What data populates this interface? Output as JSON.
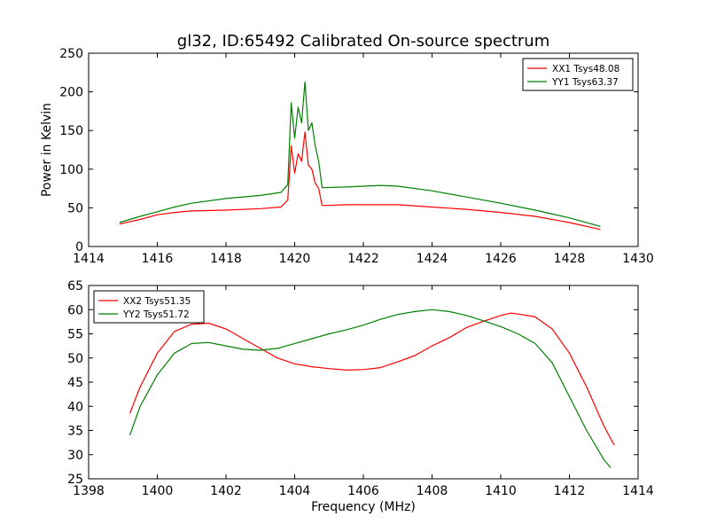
{
  "chart_data": [
    {
      "type": "line",
      "title": "gl32, ID:65492 Calibrated On-source spectrum",
      "xlabel": "",
      "ylabel": "Power in Kelvin",
      "xlim": [
        1414,
        1430
      ],
      "ylim": [
        0,
        250
      ],
      "xticks": [
        "1414",
        "1416",
        "1418",
        "1420",
        "1422",
        "1424",
        "1426",
        "1428",
        "1430"
      ],
      "yticks": [
        "0",
        "50",
        "100",
        "150",
        "200",
        "250"
      ],
      "grid": false,
      "legend_position": "top-right",
      "series": [
        {
          "name": "XX1 Tsys48.08",
          "color": "#ff0000",
          "x": [
            1414.9,
            1415.5,
            1416,
            1416.5,
            1417,
            1418,
            1419,
            1419.6,
            1419.8,
            1419.9,
            1420.0,
            1420.1,
            1420.2,
            1420.3,
            1420.4,
            1420.5,
            1420.6,
            1420.7,
            1420.8,
            1421.5,
            1422,
            1423,
            1424,
            1425,
            1426,
            1427,
            1428,
            1428.9
          ],
          "y": [
            29,
            35,
            41,
            44,
            46,
            47,
            49,
            51,
            60,
            130,
            95,
            120,
            110,
            148,
            105,
            100,
            82,
            75,
            53,
            54,
            54,
            54,
            51,
            48,
            44,
            39,
            31,
            22
          ]
        },
        {
          "name": "YY1 Tsys63.37",
          "color": "#008000",
          "x": [
            1414.9,
            1415.5,
            1416,
            1416.5,
            1417,
            1418,
            1419,
            1419.6,
            1419.8,
            1419.9,
            1420.0,
            1420.1,
            1420.2,
            1420.3,
            1420.4,
            1420.5,
            1420.6,
            1420.7,
            1420.8,
            1421.5,
            1422,
            1422.5,
            1423,
            1424,
            1425,
            1426,
            1427,
            1428,
            1428.9
          ],
          "y": [
            31,
            39,
            45,
            51,
            56,
            62,
            66,
            70,
            80,
            186,
            140,
            180,
            160,
            213,
            150,
            160,
            130,
            110,
            76,
            77,
            78,
            79,
            78,
            72,
            64,
            56,
            47,
            37,
            26
          ]
        }
      ]
    },
    {
      "type": "line",
      "title": "",
      "xlabel": "Frequency (MHz)",
      "ylabel": "",
      "xlim": [
        1398,
        1414
      ],
      "ylim": [
        25,
        65
      ],
      "xticks": [
        "1398",
        "1400",
        "1402",
        "1404",
        "1406",
        "1408",
        "1410",
        "1412",
        "1414"
      ],
      "yticks": [
        "25",
        "30",
        "35",
        "40",
        "45",
        "50",
        "55",
        "60",
        "65"
      ],
      "grid": false,
      "legend_position": "top-left",
      "series": [
        {
          "name": "XX2 Tsys51.35",
          "color": "#ff0000",
          "x": [
            1399.2,
            1399.5,
            1400,
            1400.5,
            1401,
            1401.5,
            1402,
            1402.5,
            1403,
            1403.5,
            1404,
            1404.5,
            1405,
            1405.5,
            1406,
            1406.5,
            1407,
            1407.5,
            1408,
            1408.5,
            1409,
            1409.5,
            1410,
            1410.3,
            1410.6,
            1411,
            1411.5,
            1412,
            1412.5,
            1413,
            1413.3
          ],
          "y": [
            38.5,
            44,
            51,
            55.5,
            57,
            57.2,
            56,
            54,
            52,
            50,
            48.8,
            48.2,
            47.8,
            47.5,
            47.6,
            48,
            49.2,
            50.5,
            52.5,
            54.2,
            56.3,
            57.6,
            58.8,
            59.3,
            59,
            58.5,
            56,
            51,
            44,
            36,
            32
          ]
        },
        {
          "name": "YY2 Tsys51.72",
          "color": "#008000",
          "x": [
            1399.2,
            1399.5,
            1400,
            1400.5,
            1401,
            1401.5,
            1402,
            1402.5,
            1403,
            1403.5,
            1404,
            1404.5,
            1405,
            1405.5,
            1406,
            1406.5,
            1407,
            1407.5,
            1408,
            1408.5,
            1409,
            1409.5,
            1410,
            1410.5,
            1411,
            1411.5,
            1412,
            1412.5,
            1413,
            1413.2
          ],
          "y": [
            34,
            40,
            46.5,
            51,
            53,
            53.2,
            52.5,
            51.8,
            51.6,
            52,
            53,
            54,
            55,
            55.8,
            56.8,
            58,
            59,
            59.6,
            60,
            59.6,
            58.8,
            57.7,
            56.5,
            55,
            53,
            49,
            42,
            35,
            29,
            27.3
          ]
        }
      ]
    }
  ]
}
